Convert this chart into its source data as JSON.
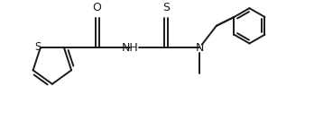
{
  "background": "#ffffff",
  "line_color": "#1a1a1a",
  "line_width": 1.4,
  "font_size": 8.5,
  "fig_width": 3.48,
  "fig_height": 1.34,
  "dpi": 100,
  "xlim": [
    -0.2,
    7.2
  ],
  "ylim": [
    -1.4,
    1.6
  ]
}
